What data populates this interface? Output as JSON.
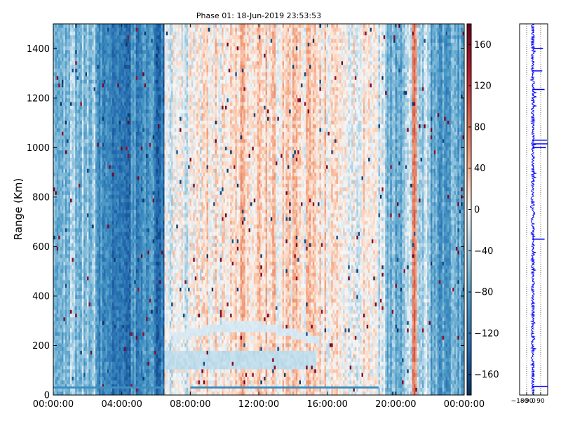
{
  "chart_data": [
    {
      "type": "heatmap",
      "title": "Phase 01: 18-Jun-2019 23:53:53",
      "xlabel": "",
      "ylabel": "Range (Km)",
      "xlim": [
        "00:00:00",
        "24:00:00"
      ],
      "ylim": [
        0,
        1500
      ],
      "x_ticks": [
        "00:00:00",
        "04:00:00",
        "08:00:00",
        "12:00:00",
        "16:00:00",
        "20:00:00",
        "00:00:00"
      ],
      "y_ticks": [
        0,
        200,
        400,
        600,
        800,
        1000,
        1200,
        1400
      ],
      "colormap": "RdBu_r",
      "color_range": [
        -180,
        180
      ],
      "colorbar_ticks": [
        -160,
        -120,
        -80,
        -40,
        0,
        40,
        80,
        120,
        160
      ],
      "colors": {
        "low": "#053061",
        "mid": "#f7f7f7",
        "high": "#67001f"
      },
      "time_bands": [
        {
          "start": "00:00:00",
          "end": "01:00:00",
          "phase": -60
        },
        {
          "start": "01:00:00",
          "end": "02:30:00",
          "phase": -50
        },
        {
          "start": "02:30:00",
          "end": "03:00:00",
          "phase": -95
        },
        {
          "start": "03:00:00",
          "end": "04:30:00",
          "phase": -115
        },
        {
          "start": "04:30:00",
          "end": "06:00:00",
          "phase": -95
        },
        {
          "start": "06:00:00",
          "end": "06:30:00",
          "phase": -120
        },
        {
          "start": "06:30:00",
          "end": "08:00:00",
          "phase": -5
        },
        {
          "start": "08:00:00",
          "end": "10:00:00",
          "phase": 8
        },
        {
          "start": "10:00:00",
          "end": "12:00:00",
          "phase": 22
        },
        {
          "start": "12:00:00",
          "end": "14:00:00",
          "phase": 18
        },
        {
          "start": "14:00:00",
          "end": "16:00:00",
          "phase": 15
        },
        {
          "start": "16:00:00",
          "end": "19:00:00",
          "phase": 5
        },
        {
          "start": "19:00:00",
          "end": "19:30:00",
          "phase": -20
        },
        {
          "start": "19:30:00",
          "end": "20:30:00",
          "phase": -60
        },
        {
          "start": "20:30:00",
          "end": "21:00:00",
          "phase": -25
        },
        {
          "start": "21:00:00",
          "end": "21:15:00",
          "phase": 70
        },
        {
          "start": "21:15:00",
          "end": "22:00:00",
          "phase": -30
        },
        {
          "start": "22:00:00",
          "end": "24:00:00",
          "phase": -75
        }
      ]
    },
    {
      "type": "line",
      "xlim": [
        -180,
        180
      ],
      "x_ticks": [
        -180,
        -90,
        0,
        90
      ],
      "ylim": [
        0,
        1500
      ],
      "line_color": "#0000ff"
    }
  ]
}
